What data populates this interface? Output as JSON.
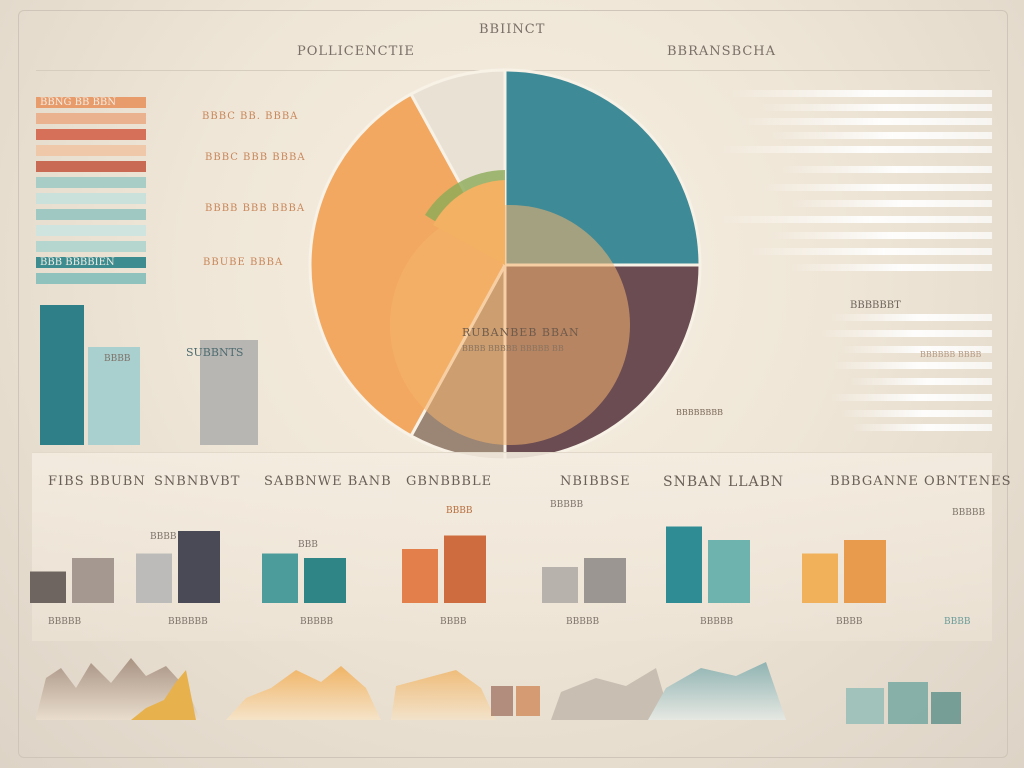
{
  "header": {
    "title": "BBIINCT",
    "left_subtitle": "POLLICENCTIE",
    "right_subtitle": "BBRANSBCHA"
  },
  "legend": {
    "stripe_labels": [
      "BBNG BB BBN",
      "BBB BBBBIEN"
    ],
    "labels": [
      "BBBC BB. BBBA",
      "BBBC BBB BBBA",
      "BBBB BBB BBBA",
      "BBUBE BBBA"
    ]
  },
  "pie": {
    "center_label": "RUBANBEB BBAN",
    "center_sub": "BBBB BBBBB BBBBB BB",
    "callout": "BBBBBBBB"
  },
  "left_bars": {
    "label_1": "BBBB",
    "label_2": "SUBBNTS"
  },
  "right_side": {
    "label_1": "BBBBBBT",
    "label_2": "BBBBBB BBBB"
  },
  "bottom": {
    "titles": [
      "FIBS BBUBN",
      "SNBNBVBT",
      "SABBNWE BANB",
      "GBNBBBLE",
      "NBIBBSE",
      "SNBAN LLABN",
      "BBBGANNE OBNTENES"
    ],
    "axis_labels": [
      "BBBBB",
      "BBBBBB",
      "BBBBB",
      "BBBB",
      "BBBBB",
      "BBBBB",
      "BBBB",
      "BBBB"
    ],
    "tags": [
      "BBBB",
      "BBB",
      "BBBB",
      "BBBBB",
      "BBBBB"
    ]
  },
  "chart_data": [
    {
      "type": "pie",
      "title": "",
      "slices": [
        {
          "value": 25,
          "color": "#3f8a97"
        },
        {
          "value": 25,
          "color": "#6b4c52"
        },
        {
          "value": 8,
          "color": "#9b8574"
        },
        {
          "value": 34,
          "color": "#f2a860"
        },
        {
          "value": 8,
          "color": "#e9e1d4"
        }
      ]
    },
    {
      "type": "bar",
      "title": "",
      "values": [
        100,
        70,
        75
      ],
      "colors": [
        "#2f7f88",
        "#a9cfcf",
        "#b8b6b3"
      ]
    },
    {
      "type": "bar",
      "categories": [
        "FIBS BBUBN",
        "SNBNBVBT",
        "SABBNWE BANB",
        "GBNBBBLE",
        "NBIBBSE",
        "SNBAN LLABN",
        "BBBGANNE OBNTENES"
      ],
      "series": [
        {
          "values": [
            35,
            55,
            55,
            60,
            40,
            85,
            55
          ]
        },
        {
          "values": [
            50,
            80,
            50,
            75,
            50,
            70,
            70
          ]
        }
      ]
    }
  ],
  "colors": {
    "teal": "#2f7f88",
    "orange": "#f2a860",
    "plum": "#6b4c52",
    "cream": "#f3ebdf"
  }
}
